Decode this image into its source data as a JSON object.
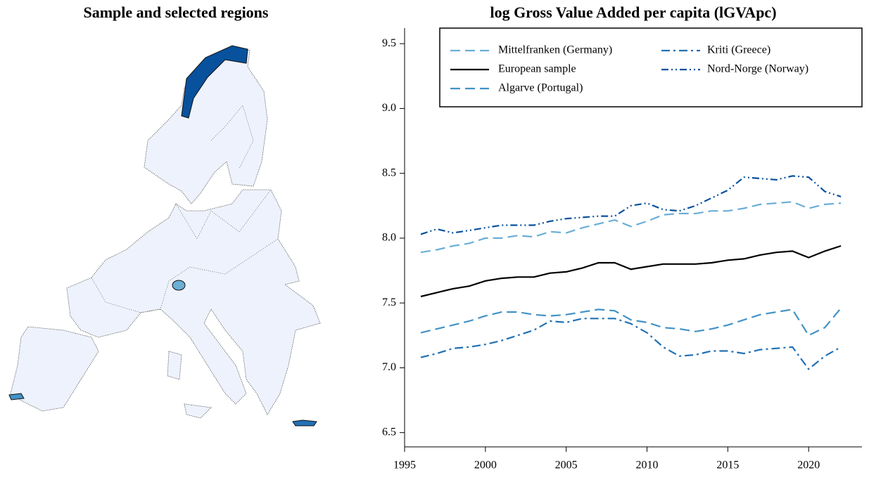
{
  "map": {
    "title": "Sample and selected regions"
  },
  "chart_data": {
    "type": "line",
    "title": "log Gross Value Added per capita (lGVApc)",
    "x": [
      1996,
      1997,
      1998,
      1999,
      2000,
      2001,
      2002,
      2003,
      2004,
      2005,
      2006,
      2007,
      2008,
      2009,
      2010,
      2011,
      2012,
      2013,
      2014,
      2015,
      2016,
      2017,
      2018,
      2019,
      2020,
      2021,
      2022
    ],
    "series": [
      {
        "name": "Mittelfranken (Germany)",
        "color": "#6baed6",
        "dash": "dashed",
        "values": [
          7.89,
          7.91,
          7.94,
          7.96,
          8.0,
          8.0,
          8.02,
          8.01,
          8.05,
          8.04,
          8.08,
          8.11,
          8.14,
          8.09,
          8.13,
          8.18,
          8.19,
          8.19,
          8.21,
          8.21,
          8.23,
          8.26,
          8.27,
          8.28,
          8.23,
          8.26,
          8.27
        ]
      },
      {
        "name": "European sample",
        "color": "#000000",
        "dash": "solid",
        "values": [
          7.55,
          7.58,
          7.61,
          7.63,
          7.67,
          7.69,
          7.7,
          7.7,
          7.73,
          7.74,
          7.77,
          7.81,
          7.81,
          7.76,
          7.78,
          7.8,
          7.8,
          7.8,
          7.81,
          7.83,
          7.84,
          7.87,
          7.89,
          7.9,
          7.85,
          7.9,
          7.94
        ]
      },
      {
        "name": "Algarve (Portugal)",
        "color": "#4292c6",
        "dash": "dashed",
        "values": [
          7.27,
          7.3,
          7.33,
          7.36,
          7.4,
          7.43,
          7.43,
          7.41,
          7.4,
          7.41,
          7.43,
          7.45,
          7.44,
          7.37,
          7.35,
          7.31,
          7.3,
          7.28,
          7.3,
          7.33,
          7.37,
          7.41,
          7.43,
          7.45,
          7.25,
          7.31,
          7.46
        ]
      },
      {
        "name": "Kriti (Greece)",
        "color": "#2171b5",
        "dash": "dashdot",
        "values": [
          7.08,
          7.11,
          7.15,
          7.16,
          7.18,
          7.21,
          7.25,
          7.29,
          7.36,
          7.35,
          7.38,
          7.38,
          7.38,
          7.34,
          7.27,
          7.16,
          7.09,
          7.1,
          7.13,
          7.13,
          7.11,
          7.14,
          7.15,
          7.16,
          6.99,
          7.09,
          7.16
        ]
      },
      {
        "name": "Nord-Norge (Norway)",
        "color": "#08519c",
        "dash": "dashdotdot",
        "values": [
          8.03,
          8.07,
          8.04,
          8.06,
          8.08,
          8.1,
          8.1,
          8.1,
          8.13,
          8.15,
          8.16,
          8.17,
          8.17,
          8.25,
          8.27,
          8.22,
          8.21,
          8.25,
          8.31,
          8.37,
          8.47,
          8.46,
          8.45,
          8.48,
          8.47,
          8.36,
          8.32
        ]
      }
    ],
    "xlim": [
      1995,
      2023.3
    ],
    "ylim": [
      6.39,
      9.62
    ],
    "xticks": [
      1995,
      2000,
      2005,
      2010,
      2015,
      2020
    ],
    "yticks": [
      6.5,
      {
        "value": 7,
        "label": "7.0"
      },
      7.5,
      {
        "value": 8,
        "label": "8.0"
      },
      8.5,
      {
        "value": 9,
        "label": "9.0"
      },
      9.5
    ],
    "legend": "top right"
  }
}
